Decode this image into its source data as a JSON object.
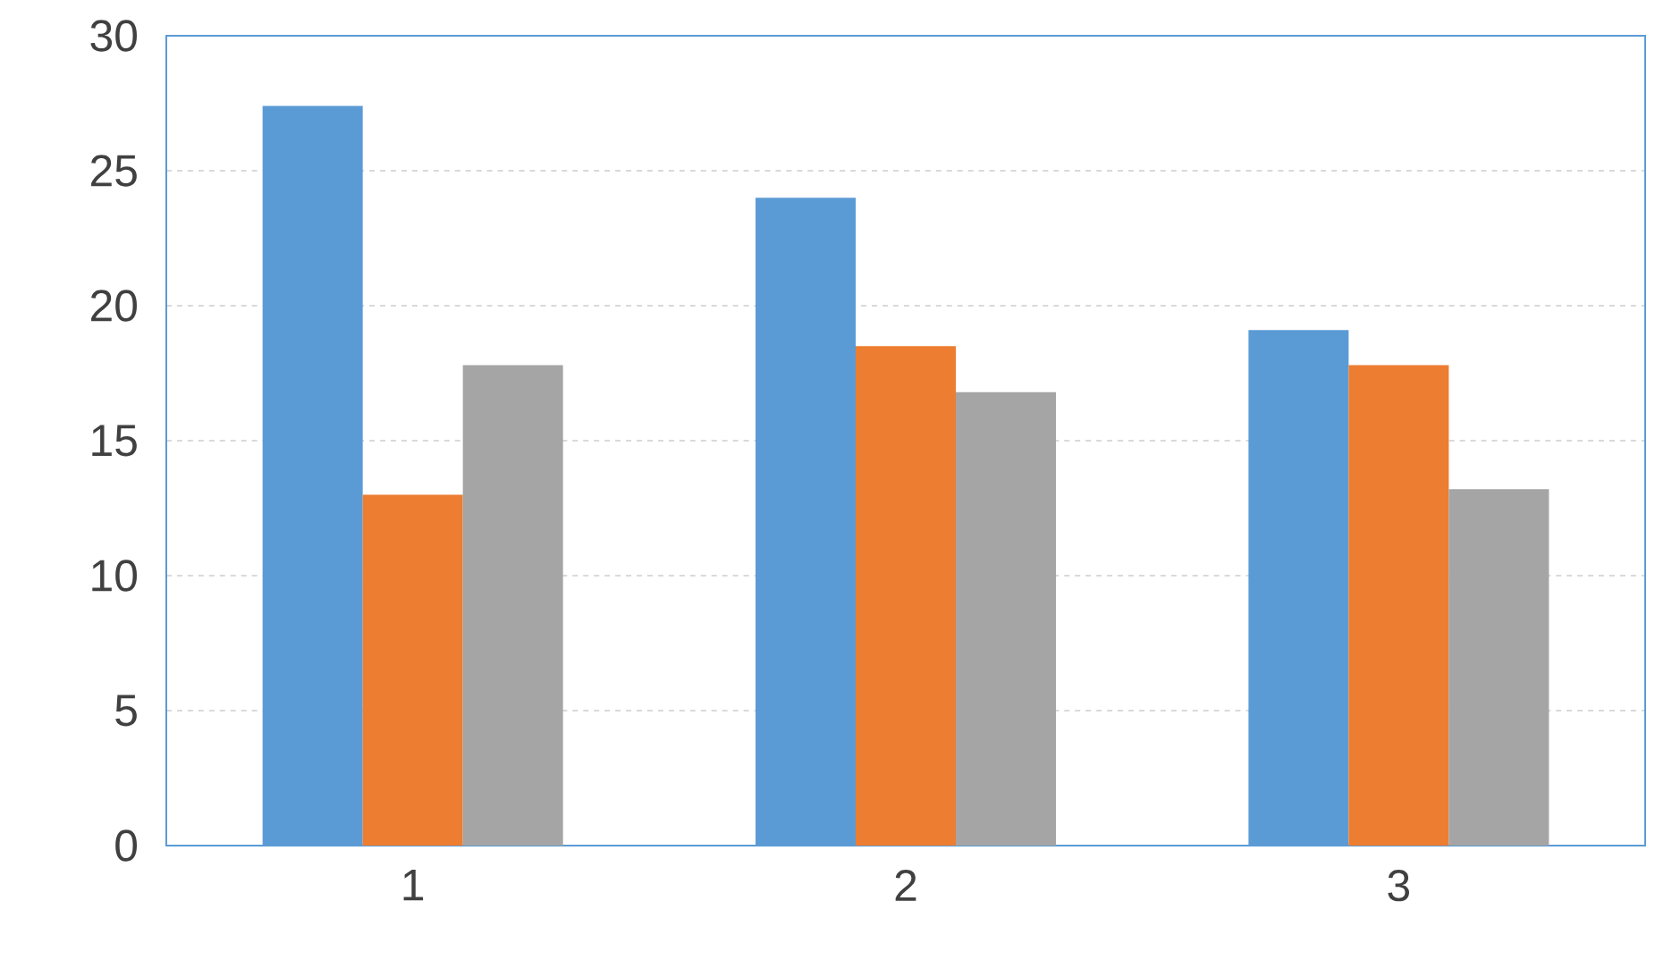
{
  "chart_data": {
    "type": "bar",
    "categories": [
      "1",
      "2",
      "3"
    ],
    "series": [
      {
        "color": "#5b9bd5",
        "values": [
          27.4,
          24.0,
          19.1
        ]
      },
      {
        "color": "#ed7d31",
        "values": [
          13.0,
          18.5,
          17.8
        ]
      },
      {
        "color": "#a5a5a5",
        "values": [
          17.8,
          16.8,
          13.2
        ]
      }
    ],
    "ylim": [
      0,
      30
    ],
    "yticks": [
      0,
      5,
      10,
      15,
      20,
      25,
      30
    ],
    "grid": "y"
  }
}
